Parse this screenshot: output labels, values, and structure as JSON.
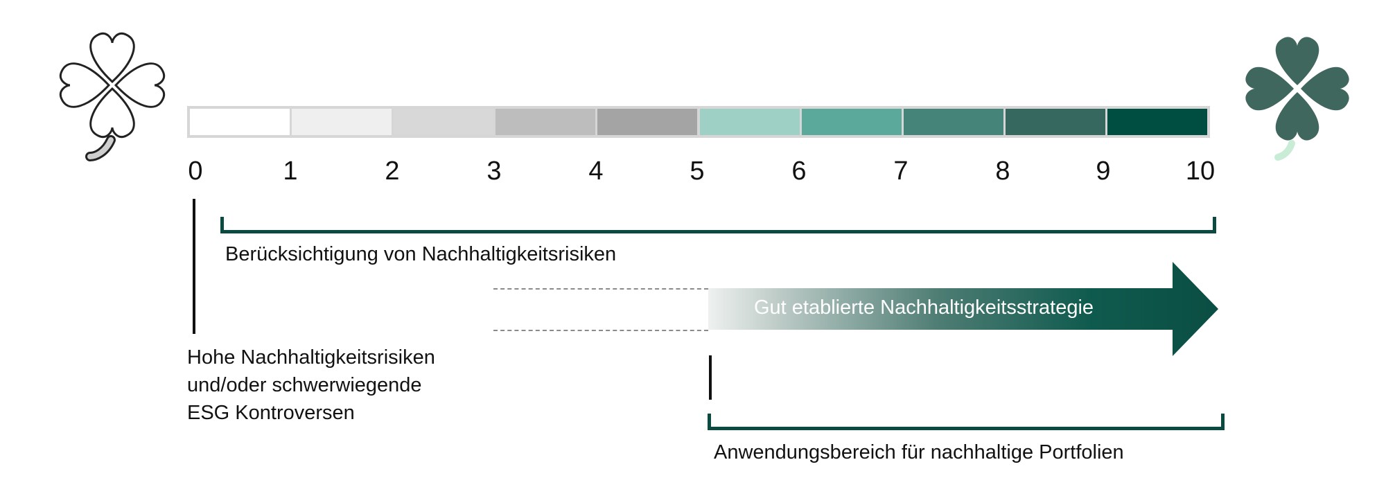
{
  "scale": {
    "ticks": [
      "0",
      "1",
      "2",
      "3",
      "4",
      "5",
      "6",
      "7",
      "8",
      "9",
      "10"
    ],
    "segment_colors": [
      "#ffffff",
      "#efefef",
      "#d8d8d8",
      "#bdbdbd",
      "#a4a4a4",
      "#9fd0c6",
      "#5aa99b",
      "#458579",
      "#37685f",
      "#004d41"
    ]
  },
  "brackets": {
    "top_label": "Berücksichtigung von Nachhaltigkeitsrisiken",
    "bottom_label": "Anwendungsbereich für nachhaltige Portfolien"
  },
  "arrow": {
    "label": "Gut etablierte Nachhaltigkeitsstrategie"
  },
  "risk_note": {
    "line1": "Hohe Nachhaltigkeitsrisiken",
    "line2": "und/oder schwerwiegende",
    "line3": "ESG Kontroversen"
  },
  "icons": {
    "left": "clover-outline-icon",
    "right": "clover-filled-icon"
  }
}
